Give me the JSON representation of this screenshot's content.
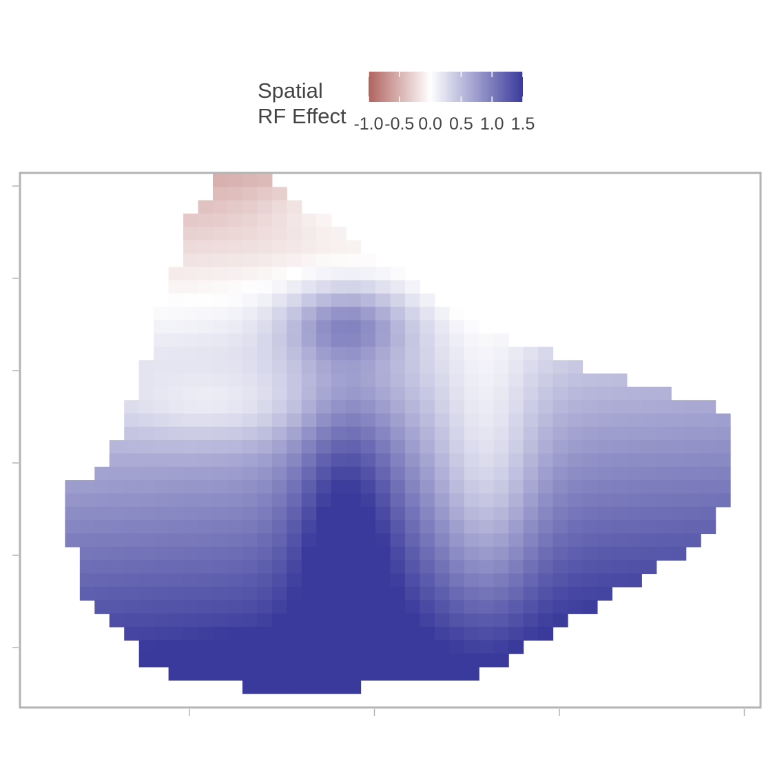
{
  "chart_data": {
    "type": "heatmap",
    "title": "",
    "xlabel": "",
    "ylabel": "",
    "legend": {
      "title_lines": [
        "Spatial",
        "RF Effect"
      ],
      "position": "top",
      "range": [
        -1.0,
        1.5
      ],
      "ticks": [
        -1.0,
        -0.5,
        0.0,
        0.5,
        1.0,
        1.5
      ],
      "tick_labels": [
        "-1.0",
        "-0.5",
        "0.0",
        "0.5",
        "1.0",
        "1.5"
      ],
      "colors": {
        "low": "#b0635f",
        "mid": "#ffffff",
        "high": "#3a3a9c"
      }
    },
    "x_axis": {
      "ticks": 4,
      "tick_labels_visible": false,
      "range": [
        0,
        1
      ]
    },
    "y_axis": {
      "ticks": 6,
      "tick_labels_visible": false,
      "range": [
        0,
        1
      ]
    },
    "grid": false,
    "grid_cols": 50,
    "grid_rows": 40,
    "field": {
      "region": [
        [
          0.27,
          0.01
        ],
        [
          0.33,
          0.01
        ],
        [
          0.63,
          0.3
        ],
        [
          0.96,
          0.45
        ],
        [
          0.96,
          0.56
        ],
        [
          0.94,
          0.67
        ],
        [
          0.7,
          0.88
        ],
        [
          0.61,
          0.94
        ],
        [
          0.35,
          0.98
        ],
        [
          0.18,
          0.93
        ],
        [
          0.09,
          0.8
        ],
        [
          0.05,
          0.61
        ],
        [
          0.12,
          0.53
        ],
        [
          0.17,
          0.34
        ],
        [
          0.23,
          0.08
        ]
      ],
      "base": {
        "intercept": -0.62,
        "per_y": 2.3,
        "per_x": 0.3
      },
      "bumps": [
        {
          "x": 0.44,
          "y": 0.64,
          "amp": 0.65,
          "sx": 0.05,
          "sy": 0.2
        },
        {
          "x": 0.63,
          "y": 0.58,
          "amp": -0.55,
          "sx": 0.05,
          "sy": 0.2
        },
        {
          "x": 0.44,
          "y": 0.28,
          "amp": 0.65,
          "sx": 0.06,
          "sy": 0.05
        },
        {
          "x": 0.68,
          "y": 0.21,
          "amp": -0.45,
          "sx": 0.06,
          "sy": 0.04
        },
        {
          "x": 0.32,
          "y": 0.95,
          "amp": 0.55,
          "sx": 0.07,
          "sy": 0.04
        },
        {
          "x": 0.45,
          "y": 0.06,
          "amp": 0.3,
          "sx": 0.08,
          "sy": 0.04
        },
        {
          "x": 0.26,
          "y": 0.44,
          "amp": -0.3,
          "sx": 0.1,
          "sy": 0.05
        }
      ],
      "range": [
        -1.0,
        1.5
      ]
    }
  }
}
